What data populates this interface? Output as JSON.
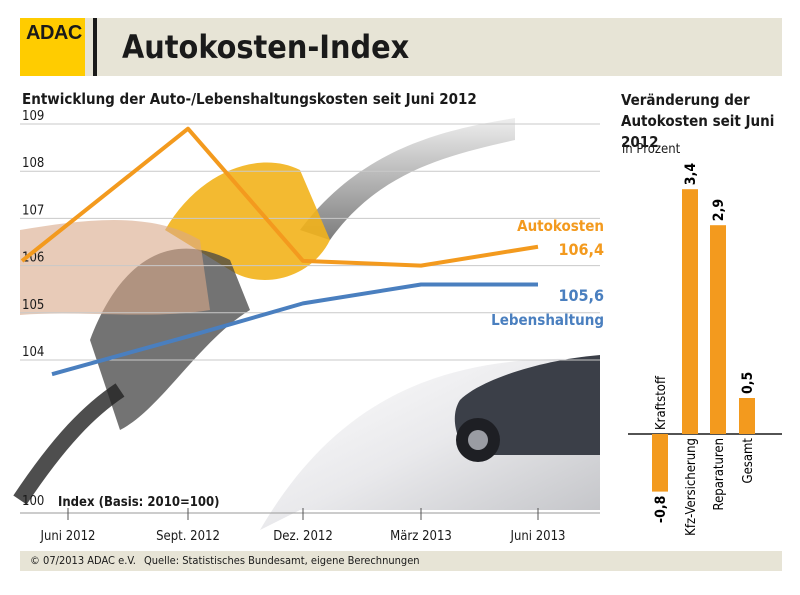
{
  "header": {
    "logo": "ADAC",
    "title": "Autokosten-Index"
  },
  "line_panel": {
    "subtitle": "Entwicklung der Auto-/Lebenshaltungskosten seit Juni 2012",
    "basis_label": "Index (Basis: 2010=100)"
  },
  "bar_panel": {
    "subtitle": "Veränderung der Autokosten seit Juni 2012",
    "unit": "in Prozent"
  },
  "footer": {
    "copyright": "© 07/2013 ADAC e.V.",
    "source": "Quelle: Statistisches Bundesamt, eigene Berechnungen"
  },
  "colors": {
    "autokosten": "#f39a1e",
    "lebenshaltung": "#4a7fbf",
    "header_bg": "#e7e4d6",
    "logo": "#ffcc00"
  },
  "chart_data": [
    {
      "type": "line",
      "title": "Entwicklung der Auto-/Lebenshaltungskosten seit Juni 2012",
      "ylabel": "Index (Basis: 2010=100)",
      "ylim": [
        100,
        109
      ],
      "yticks": [
        "100",
        "104",
        "105",
        "106",
        "107",
        "108",
        "109"
      ],
      "x_ticks": [
        "Juni 2012",
        "Sept. 2012",
        "Dez. 2012",
        "März 2013",
        "Juni 2013"
      ],
      "grid": true,
      "series": [
        {
          "name": "Autokosten",
          "end_label": "106,4",
          "x": [
            0,
            1,
            2,
            3,
            4
          ],
          "values": [
            106.1,
            108.9,
            106.1,
            106.0,
            106.4
          ]
        },
        {
          "name": "Lebenshaltung",
          "end_label": "105,6",
          "x": [
            0,
            1,
            2,
            3,
            4
          ],
          "values": [
            103.7,
            104.5,
            105.2,
            105.6,
            105.6
          ]
        }
      ]
    },
    {
      "type": "bar",
      "title": "Veränderung der Autokosten seit Juni 2012",
      "ylabel": "in Prozent",
      "categories": [
        "Kraftstoff",
        "Kfz-Versicherung",
        "Reparaturen",
        "Gesamt"
      ],
      "values": [
        -0.8,
        3.4,
        2.9,
        0.5
      ],
      "value_labels": [
        "-0,8",
        "3,4",
        "2,9",
        "0,5"
      ]
    }
  ]
}
